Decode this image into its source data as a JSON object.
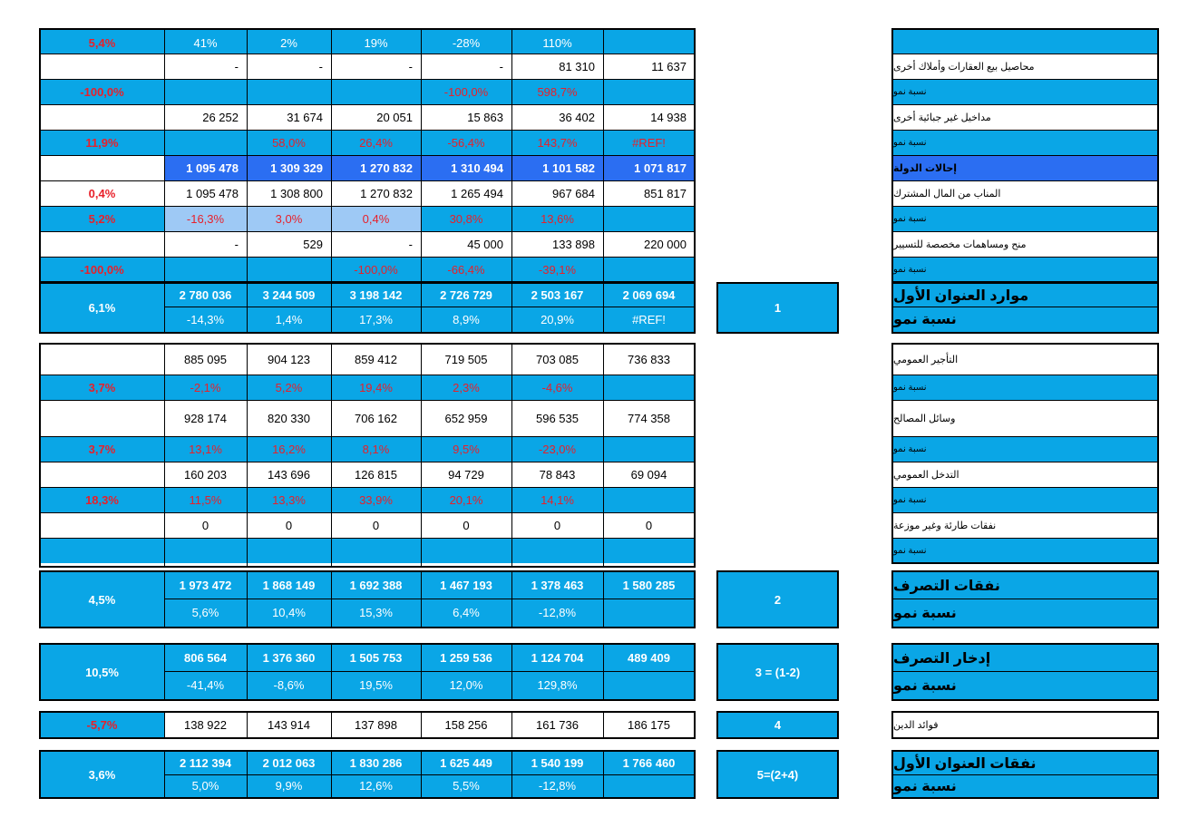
{
  "block1": {
    "rows": [
      {
        "name": "row-top-growth",
        "label": "",
        "pct": "5,4%",
        "cells": [
          "41%",
          "2%",
          "19%",
          "-28%",
          "110%",
          ""
        ]
      },
      {
        "name": "row-property-sales",
        "label": "محاصيل بيع العقارات وأملاك أخرى",
        "pct": "",
        "cells": [
          "-",
          "-",
          "-",
          "-",
          "81 310",
          "11 637"
        ]
      },
      {
        "name": "row-property-sales-growth",
        "label": "نسبة نمو",
        "pct": "-100,0%",
        "cells": [
          "",
          "",
          "",
          "-100,0%",
          "598,7%",
          ""
        ]
      },
      {
        "name": "row-non-tax-revenue",
        "label": "مداخيل غير جبائية أخرى",
        "pct": "",
        "cells": [
          "26 252",
          "31 674",
          "20 051",
          "15 863",
          "36 402",
          "14 938"
        ]
      },
      {
        "name": "row-non-tax-revenue-growth",
        "label": "نسبة نمو",
        "pct": "11,9%",
        "cells": [
          "",
          "58,0%",
          "26,4%",
          "-56,4%",
          "143,7%",
          "#REF!"
        ]
      },
      {
        "name": "row-state-transfers",
        "label": "إحالات الدولة",
        "pct": "",
        "cells": [
          "1 095 478",
          "1 309 329",
          "1 270 832",
          "1 310 494",
          "1 101 582",
          "1 071 817"
        ]
      },
      {
        "name": "row-common-fund",
        "label": "المناب من المال المشترك",
        "pct": "0,4%",
        "cells": [
          "1 095 478",
          "1 308 800",
          "1 270 832",
          "1 265 494",
          "967 684",
          "851 817"
        ]
      },
      {
        "name": "row-common-fund-growth",
        "label": "نسبة نمو",
        "pct": "5,2%",
        "cells": [
          "-16,3%",
          "3,0%",
          "0,4%",
          "30,8%",
          "13,6%",
          ""
        ]
      },
      {
        "name": "row-operating-grants",
        "label": "منح ومساهمات مخصصة للتسيير",
        "pct": "",
        "cells": [
          "-",
          "529",
          "-",
          "45 000",
          "133 898",
          "220 000"
        ]
      },
      {
        "name": "row-operating-grants-growth",
        "label": "نسبة نمو",
        "pct": "-100,0%",
        "cells": [
          "",
          "",
          "-100,0%",
          "-66,4%",
          "-39,1%",
          ""
        ]
      }
    ],
    "total": {
      "label": "موارد العنوان الأول",
      "growth_label": "نسبة نمو",
      "index": "1",
      "pct": "6,1%",
      "values": [
        "2 780 036",
        "3 244 509",
        "3 198 142",
        "2 726 729",
        "2 503 167",
        "2 069 694"
      ],
      "growth": [
        "-14,3%",
        "1,4%",
        "17,3%",
        "8,9%",
        "20,9%",
        "#REF!"
      ]
    }
  },
  "block2": {
    "rows": [
      {
        "name": "row-public-wages",
        "label": "التأجير العمومي",
        "pct": "",
        "cells": [
          "885 095",
          "904 123",
          "859 412",
          "719 505",
          "703 085",
          "736 833"
        ]
      },
      {
        "name": "row-public-wages-growth",
        "label": "نسبة نمو",
        "pct": "3,7%",
        "cells": [
          "-2,1%",
          "5,2%",
          "19,4%",
          "2,3%",
          "-4,6%",
          ""
        ]
      },
      {
        "name": "row-service-means",
        "label": "وسائل المصالح",
        "pct": "",
        "cells": [
          "928 174",
          "820 330",
          "706 162",
          "652 959",
          "596 535",
          "774 358"
        ]
      },
      {
        "name": "row-service-means-growth",
        "label": "نسبة نمو",
        "pct": "3,7%",
        "cells": [
          "13,1%",
          "16,2%",
          "8,1%",
          "9,5%",
          "-23,0%",
          ""
        ]
      },
      {
        "name": "row-public-intervention",
        "label": "التدخل العمومي",
        "pct": "",
        "cells": [
          "160 203",
          "143 696",
          "126 815",
          "94 729",
          "78 843",
          "69 094"
        ]
      },
      {
        "name": "row-public-intervention-growth",
        "label": "نسبة نمو",
        "pct": "18,3%",
        "cells": [
          "11,5%",
          "13,3%",
          "33,9%",
          "20,1%",
          "14,1%",
          ""
        ]
      },
      {
        "name": "row-unforeseen-expenses",
        "label": "نفقات طارئة وغير موزعة",
        "pct": "",
        "cells": [
          "0",
          "0",
          "0",
          "0",
          "0",
          "0"
        ]
      },
      {
        "name": "row-unforeseen-expenses-growth",
        "label": "نسبة نمو",
        "pct": "",
        "cells": [
          "",
          "",
          "",
          "",
          "",
          ""
        ]
      }
    ]
  },
  "total2": {
    "label": "نفقات التصرف",
    "growth_label": "نسبة نمو",
    "index": "2",
    "pct": "4,5%",
    "values": [
      "1 973 472",
      "1 868 149",
      "1 692 388",
      "1 467 193",
      "1 378 463",
      "1 580 285"
    ],
    "growth": [
      "5,6%",
      "10,4%",
      "15,3%",
      "6,4%",
      "-12,8%",
      ""
    ]
  },
  "total3": {
    "label": "إدخار التصرف",
    "growth_label": "نسبة نمو",
    "index": "3 = (1-2)",
    "pct": "10,5%",
    "values": [
      "806 564",
      "1 376 360",
      "1 505 753",
      "1 259 536",
      "1 124 704",
      "489 409"
    ],
    "growth": [
      "-41,4%",
      "-8,6%",
      "19,5%",
      "12,0%",
      "129,8%",
      ""
    ]
  },
  "debt": {
    "label": "فوائد الدين",
    "index": "4",
    "pct": "-5,7%",
    "values": [
      "138 922",
      "143 914",
      "137 898",
      "158 256",
      "161 736",
      "186 175"
    ]
  },
  "total5": {
    "label": "نفقات العنوان الأول",
    "growth_label": "نسبة نمو",
    "index": "5=(2+4)",
    "pct": "3,6%",
    "values": [
      "2 112 394",
      "2 012 063",
      "1 830 286",
      "1 625 449",
      "1 540 199",
      "1 766 460"
    ],
    "growth": [
      "5,0%",
      "9,9%",
      "12,6%",
      "5,5%",
      "-12,8%",
      ""
    ]
  },
  "colors": {
    "cell_blue": "#0aa6e6",
    "dark_blue": "#2b6ef2",
    "light_blue": "#9ec9f5",
    "negative_red": "#e8202a"
  }
}
